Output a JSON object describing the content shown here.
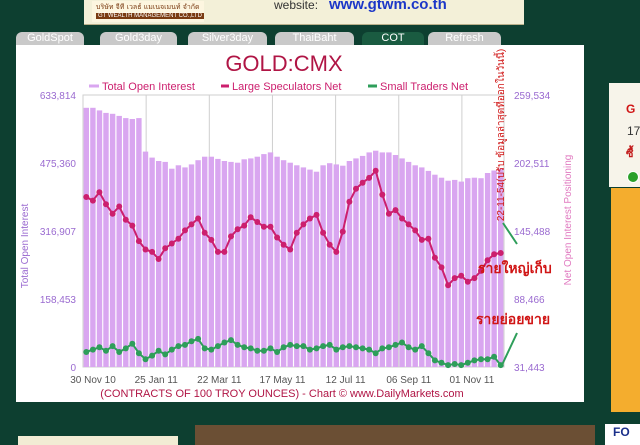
{
  "header": {
    "logo_thai": "บริษัท จีที เวลธ์ แมเนจเมนท์ จำกัด",
    "logo_en": "GT WEALTH MANAGEMENT CO.,LTD",
    "website_label": "website:",
    "website_url": "www.gtwm.co.th"
  },
  "tabs": [
    {
      "label": "GoldSpot",
      "active": false
    },
    {
      "label": "Gold3day",
      "active": false
    },
    {
      "label": "Silver3day",
      "active": false
    },
    {
      "label": "ThaiBaht",
      "active": false
    },
    {
      "label": "COT",
      "active": true
    },
    {
      "label": "Refresh",
      "active": false
    }
  ],
  "side_panel": {
    "g": "G",
    "n": "17",
    "thai": "ซื้"
  },
  "bottom": {
    "right_text": "FO"
  },
  "chart_data": {
    "type": "bar+line",
    "title": "GOLD:CMX",
    "legend": [
      "Total Open Interest",
      "Large Speculators Net",
      "Small Traders Net"
    ],
    "left_axis_label": "Total Open Interest",
    "right_axis_label": "Net Open Interest Positioning",
    "left_ticks": [
      "633,814",
      "475,360",
      "316,907",
      "158,453",
      "0"
    ],
    "left_ylim": [
      0,
      633814
    ],
    "right_ticks": [
      "259,534",
      "202,511",
      "145,488",
      "88,466",
      "31,443"
    ],
    "right_ylim": [
      31443,
      259534
    ],
    "x_ticks": [
      "30 Nov 10",
      "25 Jan 11",
      "22 Mar 11",
      "17 May 11",
      "12 Jul 11",
      "06 Sep 11",
      "01 Nov 11"
    ],
    "footer": "(CONTRACTS OF 100 TROY OUNCES)  - Chart © www.DailyMarkets.com",
    "timestamp": "22-11-54(ปรับ ข้อมูลล่าสุดที่ออกในวันนี้)",
    "annotation_large": "รายใหญ่เก็บ",
    "annotation_small": "รายย่อยขาย",
    "colors": {
      "bars": "#d9a6f0",
      "large": "#cc1f6e",
      "small": "#2e9e5a",
      "title": "#b01545",
      "legend_text": "#cc1f6e",
      "axis_text": "#9a6ad0",
      "annotation": "#d01515"
    },
    "total_open_interest": [
      604000,
      604000,
      598000,
      592000,
      590000,
      585000,
      580000,
      578000,
      580000,
      502000,
      488000,
      480000,
      478000,
      462000,
      470000,
      465000,
      472000,
      482000,
      490000,
      490000,
      485000,
      480000,
      478000,
      476000,
      484000,
      486000,
      490000,
      496000,
      500000,
      490000,
      482000,
      476000,
      470000,
      465000,
      460000,
      455000,
      470000,
      475000,
      472000,
      469000,
      480000,
      486000,
      492000,
      500000,
      504000,
      500000,
      500000,
      494000,
      486000,
      478000,
      470000,
      465000,
      457000,
      448000,
      441000,
      434000,
      436000,
      432000,
      440000,
      441000,
      440000,
      452000,
      458000,
      462000
    ],
    "large_speculators_net": [
      174000,
      171000,
      178000,
      168000,
      160000,
      166000,
      155000,
      150000,
      137000,
      130000,
      128000,
      122000,
      131000,
      135000,
      139000,
      146000,
      151000,
      156000,
      144000,
      138000,
      128000,
      128000,
      141000,
      147000,
      150000,
      157000,
      153000,
      149000,
      149000,
      140000,
      134000,
      130000,
      144000,
      151000,
      156000,
      159000,
      144000,
      134000,
      128000,
      145000,
      170000,
      181000,
      186000,
      190000,
      196000,
      176000,
      160000,
      163000,
      156000,
      151000,
      146000,
      138000,
      139000,
      123000,
      115000,
      100000,
      106000,
      108000,
      103000,
      106000,
      112000,
      121000,
      126000,
      127000
    ],
    "small_traders_net": [
      44000,
      46000,
      48000,
      45000,
      49000,
      44000,
      47000,
      51000,
      43000,
      38000,
      41000,
      45000,
      42000,
      46000,
      49000,
      50000,
      53000,
      55000,
      47000,
      46000,
      49000,
      52000,
      54000,
      50000,
      48000,
      47000,
      45000,
      45000,
      47000,
      44000,
      48000,
      50000,
      49000,
      49000,
      46000,
      47000,
      49000,
      50000,
      46000,
      48000,
      49000,
      48000,
      47000,
      46000,
      43000,
      47000,
      48000,
      50000,
      52000,
      48000,
      46000,
      49000,
      43000,
      37000,
      35000,
      33000,
      34000,
      33000,
      35000,
      37000,
      38000,
      38000,
      40000,
      33000
    ]
  }
}
